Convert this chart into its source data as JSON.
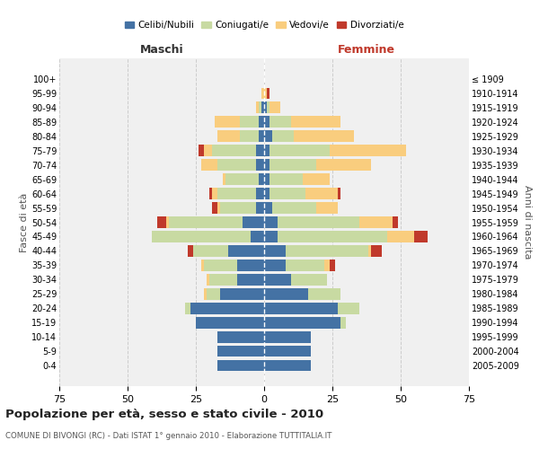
{
  "age_groups_bottom_to_top": [
    "0-4",
    "5-9",
    "10-14",
    "15-19",
    "20-24",
    "25-29",
    "30-34",
    "35-39",
    "40-44",
    "45-49",
    "50-54",
    "55-59",
    "60-64",
    "65-69",
    "70-74",
    "75-79",
    "80-84",
    "85-89",
    "90-94",
    "95-99",
    "100+"
  ],
  "birth_years_bottom_to_top": [
    "2005-2009",
    "2000-2004",
    "1995-1999",
    "1990-1994",
    "1985-1989",
    "1980-1984",
    "1975-1979",
    "1970-1974",
    "1965-1969",
    "1960-1964",
    "1955-1959",
    "1950-1954",
    "1945-1949",
    "1940-1944",
    "1935-1939",
    "1930-1934",
    "1925-1929",
    "1920-1924",
    "1915-1919",
    "1910-1914",
    "≤ 1909"
  ],
  "males": {
    "celibi": [
      17,
      17,
      17,
      25,
      27,
      16,
      10,
      10,
      13,
      5,
      8,
      3,
      3,
      2,
      3,
      3,
      2,
      2,
      1,
      0,
      0
    ],
    "coniugati": [
      0,
      0,
      0,
      0,
      2,
      5,
      10,
      12,
      13,
      36,
      27,
      13,
      14,
      12,
      14,
      16,
      7,
      7,
      1,
      0,
      0
    ],
    "vedovi": [
      0,
      0,
      0,
      0,
      0,
      1,
      1,
      1,
      0,
      0,
      1,
      1,
      2,
      1,
      6,
      3,
      8,
      9,
      1,
      1,
      0
    ],
    "divorziati": [
      0,
      0,
      0,
      0,
      0,
      0,
      0,
      0,
      2,
      0,
      3,
      2,
      1,
      0,
      0,
      2,
      0,
      0,
      0,
      0,
      0
    ]
  },
  "females": {
    "nubili": [
      17,
      17,
      17,
      28,
      27,
      16,
      10,
      8,
      8,
      5,
      5,
      3,
      2,
      2,
      2,
      2,
      3,
      2,
      1,
      0,
      0
    ],
    "coniugate": [
      0,
      0,
      0,
      2,
      8,
      12,
      13,
      14,
      30,
      40,
      30,
      16,
      13,
      12,
      17,
      22,
      8,
      8,
      1,
      0,
      0
    ],
    "vedove": [
      0,
      0,
      0,
      0,
      0,
      0,
      0,
      2,
      1,
      10,
      12,
      8,
      12,
      10,
      20,
      28,
      22,
      18,
      4,
      1,
      0
    ],
    "divorziate": [
      0,
      0,
      0,
      0,
      0,
      0,
      0,
      2,
      4,
      5,
      2,
      0,
      1,
      0,
      0,
      0,
      0,
      0,
      0,
      1,
      0
    ]
  },
  "colors": {
    "celibi": "#4472a4",
    "coniugati": "#c8daa2",
    "vedovi": "#f9cd7e",
    "divorziati": "#c0392b"
  },
  "xlim": 75,
  "title": "Popolazione per età, sesso e stato civile - 2010",
  "subtitle": "COMUNE DI BIVONGI (RC) - Dati ISTAT 1° gennaio 2010 - Elaborazione TUTTITALIA.IT",
  "ylabel_left": "Fasce di età",
  "ylabel_right": "Anni di nascita",
  "xlabel_left": "Maschi",
  "xlabel_right": "Femmine",
  "bg_color": "#ffffff",
  "plot_bg_color": "#f0f0f0",
  "grid_color": "#cccccc"
}
